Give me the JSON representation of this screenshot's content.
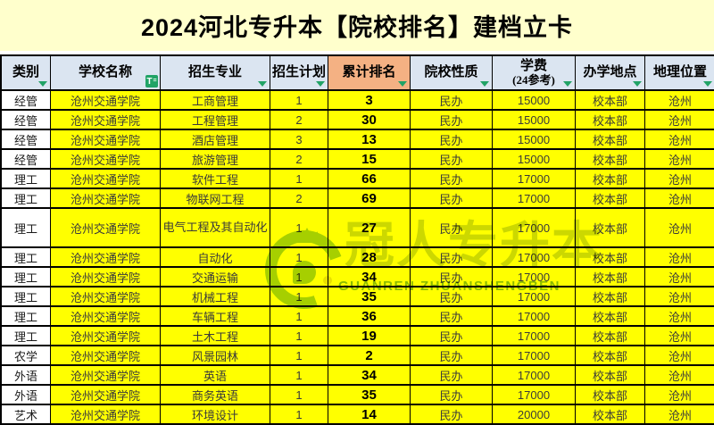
{
  "title": "2024河北专升本【院校排名】建档立卡",
  "table": {
    "columns": [
      {
        "key": "category",
        "label": "类别"
      },
      {
        "key": "school",
        "label": "学校名称",
        "filter": "active"
      },
      {
        "key": "major",
        "label": "招生专业"
      },
      {
        "key": "plan",
        "label": "招生计划"
      },
      {
        "key": "rank",
        "label": "累计排名",
        "highlight": true
      },
      {
        "key": "nature",
        "label": "院校性质"
      },
      {
        "key": "tuition",
        "label": "学费",
        "label2": "(24参考)"
      },
      {
        "key": "campus",
        "label": "办学地点"
      },
      {
        "key": "location",
        "label": "地理位置"
      }
    ],
    "rows": [
      [
        "经管",
        "沧州交通学院",
        "工商管理",
        "1",
        "3",
        "民办",
        "15000",
        "校本部",
        "沧州"
      ],
      [
        "经管",
        "沧州交通学院",
        "工程管理",
        "2",
        "30",
        "民办",
        "15000",
        "校本部",
        "沧州"
      ],
      [
        "经管",
        "沧州交通学院",
        "酒店管理",
        "3",
        "13",
        "民办",
        "15000",
        "校本部",
        "沧州"
      ],
      [
        "经管",
        "沧州交通学院",
        "旅游管理",
        "2",
        "15",
        "民办",
        "15000",
        "校本部",
        "沧州"
      ],
      [
        "理工",
        "沧州交通学院",
        "软件工程",
        "1",
        "66",
        "民办",
        "17000",
        "校本部",
        "沧州"
      ],
      [
        "理工",
        "沧州交通学院",
        "物联网工程",
        "2",
        "69",
        "民办",
        "17000",
        "校本部",
        "沧州"
      ],
      [
        "理工",
        "沧州交通学院",
        "电气工程及其自动化",
        "1",
        "27",
        "民办",
        "17000",
        "校本部",
        "沧州"
      ],
      [
        "理工",
        "沧州交通学院",
        "自动化",
        "1",
        "28",
        "民办",
        "17000",
        "校本部",
        "沧州"
      ],
      [
        "理工",
        "沧州交通学院",
        "交通运输",
        "1",
        "34",
        "民办",
        "17000",
        "校本部",
        "沧州"
      ],
      [
        "理工",
        "沧州交通学院",
        "机械工程",
        "1",
        "35",
        "民办",
        "17000",
        "校本部",
        "沧州"
      ],
      [
        "理工",
        "沧州交通学院",
        "车辆工程",
        "1",
        "36",
        "民办",
        "17000",
        "校本部",
        "沧州"
      ],
      [
        "理工",
        "沧州交通学院",
        "土木工程",
        "1",
        "19",
        "民办",
        "17000",
        "校本部",
        "沧州"
      ],
      [
        "农学",
        "沧州交通学院",
        "风景园林",
        "1",
        "2",
        "民办",
        "17000",
        "校本部",
        "沧州"
      ],
      [
        "外语",
        "沧州交通学院",
        "英语",
        "1",
        "34",
        "民办",
        "17000",
        "校本部",
        "沧州"
      ],
      [
        "外语",
        "沧州交通学院",
        "商务英语",
        "1",
        "35",
        "民办",
        "17000",
        "校本部",
        "沧州"
      ],
      [
        "艺术",
        "沧州交通学院",
        "环境设计",
        "1",
        "14",
        "民办",
        "20000",
        "校本部",
        "沧州"
      ]
    ],
    "tall_row_index": 6
  },
  "watermark": {
    "cn": "冠人专升本",
    "en": "GUANREN ZHUANSHENGBEN"
  },
  "colors": {
    "title_bg": "#ffffcc",
    "header_bg": "#dbe5f1",
    "rank_header_bg": "#f4b183",
    "data_row_bg": "#ffff00",
    "filter_green": "#21a366",
    "watermark_green": "#a6cf2d",
    "border": "#000000"
  }
}
